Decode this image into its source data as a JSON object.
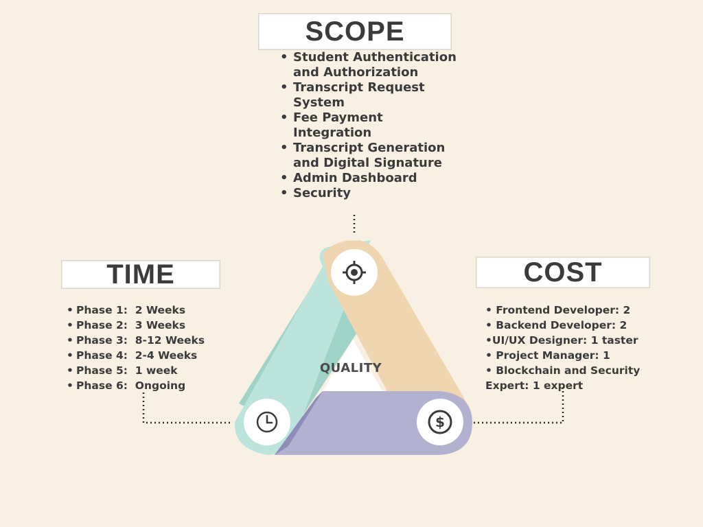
{
  "scope": {
    "title": "SCOPE",
    "items": [
      "Student Authentication and Authorization",
      "Transcript Request System",
      "Fee Payment Integration",
      "Transcript Generation and Digital Signature",
      "Admin Dashboard",
      "Security"
    ]
  },
  "time": {
    "title": "TIME",
    "items": [
      "Phase 1:  2 Weeks",
      "Phase 2:  3 Weeks",
      "Phase 3:  8-12 Weeks",
      "Phase 4:  2-4 Weeks",
      "Phase 5:  1 week",
      "Phase 6:  Ongoing"
    ]
  },
  "cost": {
    "title": "COST",
    "items": [
      "• Frontend Developer: 2",
      "• Backend Developer: 2",
      "•UI/UX Designer: 1 taster",
      "• Project Manager: 1",
      "• Blockchain and Security",
      "Expert: 1 expert"
    ]
  },
  "center": {
    "label": "QUALITY"
  },
  "icons": {
    "top": "target-icon",
    "left": "clock-icon",
    "right": "dollar-icon"
  },
  "colors": {
    "background": "#f8f0e3",
    "scope_arm": "#efd5b0",
    "time_arm": "#bce4dc",
    "cost_arm": "#b2b2d0",
    "text": "#3a3a3c"
  }
}
